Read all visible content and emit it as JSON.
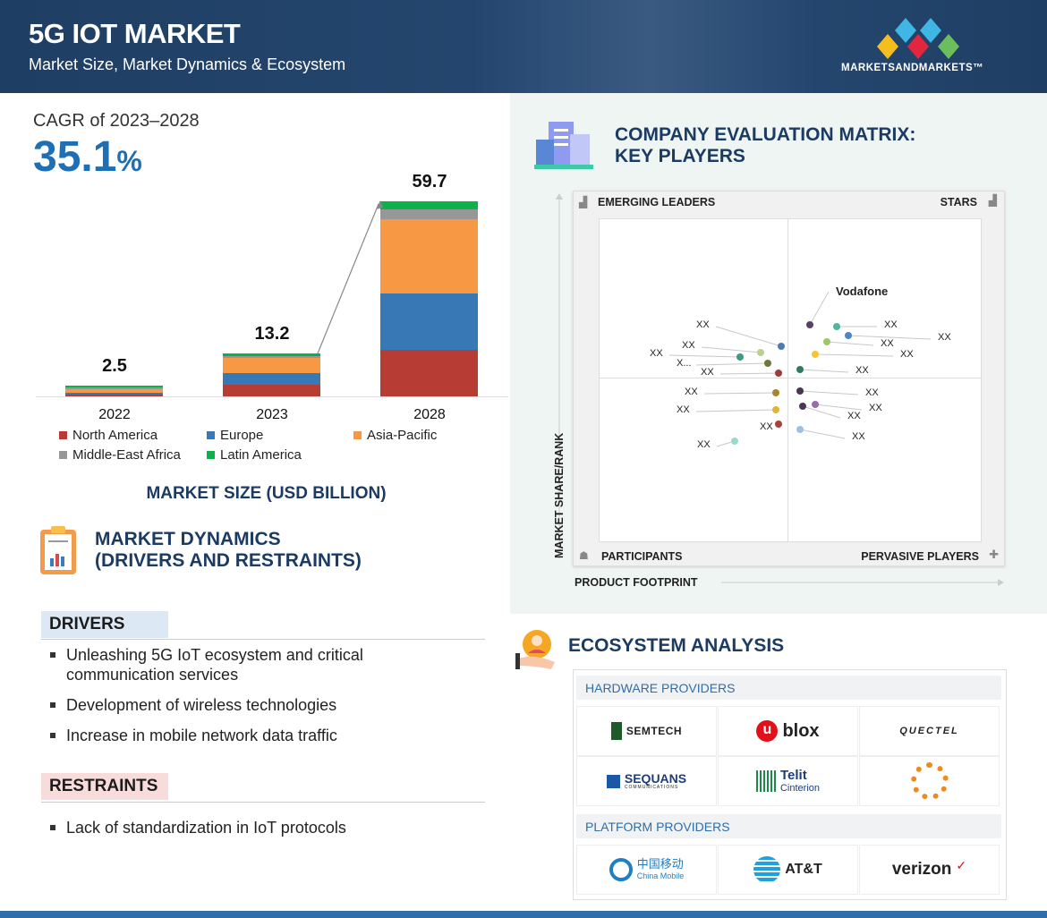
{
  "header": {
    "title": "5G IOT MARKET",
    "subtitle": "Market Size, Market Dynamics & Ecosystem",
    "logo": "MARKETSANDMARKETS™"
  },
  "cagr": {
    "label": "CAGR of 2023–2028",
    "value": "35.1",
    "unit": "%"
  },
  "chart_data": {
    "type": "bar",
    "stacked": true,
    "title": "MARKET SIZE (USD BILLION)",
    "categories": [
      "2022",
      "2023",
      "2028"
    ],
    "totals": [
      "2.5",
      "13.2",
      "59.7"
    ],
    "series": [
      {
        "name": "North America",
        "color": "#b73c33",
        "values": [
          0.5,
          3.6,
          14.2
        ]
      },
      {
        "name": "Europe",
        "color": "#3778b5",
        "values": [
          0.5,
          3.6,
          17.3
        ]
      },
      {
        "name": "Asia-Pacific",
        "color": "#f79844",
        "values": [
          1.0,
          4.6,
          22.7
        ]
      },
      {
        "name": "Middle-East Africa",
        "color": "#979797",
        "values": [
          0.2,
          0.6,
          3.0
        ]
      },
      {
        "name": "Latin America",
        "color": "#0db04b",
        "values": [
          0.3,
          0.8,
          2.5
        ]
      }
    ],
    "legend": "bottom",
    "grid": false
  },
  "dynamics": {
    "title_line1": "MARKET DYNAMICS",
    "title_line2": "(DRIVERS AND RESTRAINTS)",
    "drivers_label": "DRIVERS",
    "drivers": [
      "Unleashing 5G IoT ecosystem and critical communication services",
      "Development of wireless technologies",
      "Increase in mobile network data traffic"
    ],
    "restraints_label": "RESTRAINTS",
    "restraints": [
      "Lack of standardization in IoT protocols"
    ]
  },
  "matrix": {
    "title_line1": "COMPANY EVALUATION MATRIX:",
    "title_line2": "KEY PLAYERS",
    "quadrants": {
      "top_left": "EMERGING LEADERS",
      "top_right": "STARS",
      "bottom_left": "PARTICIPANTS",
      "bottom_right": "PERVASIVE PLAYERS"
    },
    "y_axis": "MARKET SHARE/RANK",
    "x_axis": "PRODUCT FOOTPRINT",
    "players": [
      "Vodafone",
      "XX",
      "XX",
      "XX",
      "XX",
      "XX",
      "XX",
      "XX",
      "XX",
      "XX",
      "XX",
      "XX",
      "XX",
      "X...",
      "XX",
      "XX",
      "XX",
      "XX",
      "XX"
    ]
  },
  "ecosystem": {
    "title": "ECOSYSTEM ANALYSIS",
    "hardware_label": "HARDWARE PROVIDERS",
    "hardware": [
      "SEMTECH",
      "blox",
      "QUECTEL",
      "SEQUANS",
      "Telit",
      "Cinterion"
    ],
    "sequans_sub": "COMMUNICATIONS",
    "platform_label": "PLATFORM PROVIDERS",
    "platform": [
      "中国移动",
      "China Mobile",
      "AT&T",
      "verizon"
    ]
  }
}
